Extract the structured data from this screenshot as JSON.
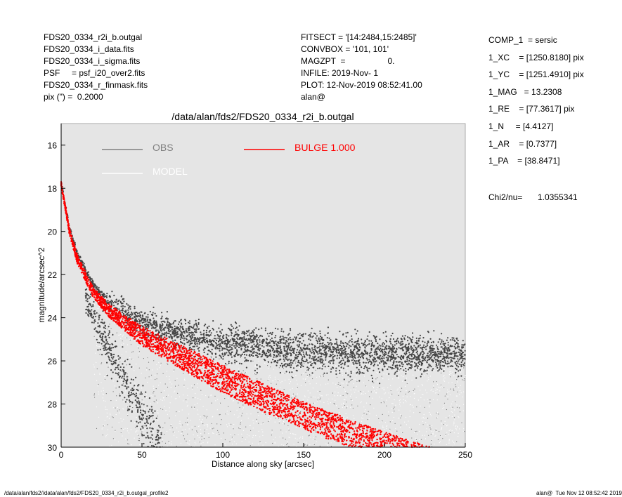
{
  "header_left": [
    "FDS20_0334_r2i_b.outgal",
    "FDS20_0334_i_data.fits",
    "FDS20_0334_i_sigma.fits",
    "PSF     = psf_i20_over2.fits",
    "FDS20_0334_r_finmask.fits",
    "pix (\") =  0.2000"
  ],
  "header_mid": [
    "FITSECT = '[14:2484,15:2485]'",
    "CONVBOX = '101, 101'",
    "MAGZPT  =                  0.",
    "INFILE: 2019-Nov- 1",
    "PLOT: 12-Nov-2019 08:52:41.00",
    "alan@"
  ],
  "params": [
    "COMP_1  = sersic",
    "1_XC    = [1250.8180] pix",
    "1_YC    = [1251.4910] pix",
    "1_MAG   = 13.2308",
    "1_RE    = [77.3617] pix",
    "1_N     = [4.4127]",
    "1_AR    = [0.7377]",
    "1_PA    = [38.8471]"
  ],
  "chi2": {
    "label": "Chi2/nu=",
    "value": "1.0355341"
  },
  "footer": {
    "left": "/data/alan/fds2//data/alan/fds2/FDS20_0334_r2i_b.outgal_profile2",
    "right": "alan@  Tue Nov 12 08:52:42 2019"
  },
  "chart_data": {
    "type": "scatter",
    "title": "/data/alan/fds2/FDS20_0334_r2i_b.outgal",
    "xlabel": "Distance along sky [arcsec]",
    "ylabel": "magnitude/arcsec^2",
    "xlim": [
      0,
      250
    ],
    "ylim": [
      30,
      15
    ],
    "y_inverted": true,
    "xticks": [
      0,
      50,
      100,
      150,
      200,
      250
    ],
    "yticks": [
      16,
      18,
      20,
      22,
      24,
      26,
      28,
      30
    ],
    "grid": false,
    "background": "#e5e5e5",
    "legend": [
      {
        "name": "OBS",
        "color": "#808080"
      },
      {
        "name": "MODEL",
        "color": "#ffffff"
      },
      {
        "name": "BULGE 1.000",
        "color": "#ff0000"
      }
    ],
    "legend_placement": "top",
    "series": [
      {
        "name": "OBS",
        "color": "#444444",
        "kind": "main branch",
        "x": [
          0,
          5,
          10,
          20,
          30,
          50,
          75,
          100,
          150,
          200,
          250
        ],
        "y": [
          17.7,
          19.8,
          21.0,
          22.5,
          23.3,
          24.2,
          24.8,
          25.2,
          25.6,
          25.7,
          25.7
        ],
        "scatter": [
          0.1,
          0.15,
          0.15,
          0.2,
          0.25,
          0.3,
          0.35,
          0.4,
          0.45,
          0.45,
          0.45
        ]
      },
      {
        "name": "OBS",
        "color": "#444444",
        "kind": "faint branch",
        "x": [
          15,
          20,
          30,
          40,
          50,
          60
        ],
        "y": [
          23.0,
          24.0,
          25.5,
          27.0,
          28.5,
          30.0
        ],
        "scatter": [
          0.3,
          0.4,
          0.5,
          0.6,
          0.7,
          0.7
        ]
      },
      {
        "name": "BULGE 1.000",
        "color": "#ff0000",
        "x": [
          0,
          5,
          10,
          20,
          30,
          50,
          75,
          100,
          150,
          200,
          250
        ],
        "y_bright": [
          17.7,
          19.8,
          21.1,
          22.6,
          23.4,
          24.4,
          25.3,
          26.2,
          27.9,
          29.3,
          30.5
        ],
        "y_faint": [
          17.9,
          20.1,
          21.5,
          23.1,
          24.0,
          25.3,
          26.4,
          27.5,
          29.2,
          30.6,
          31.8
        ]
      }
    ]
  }
}
